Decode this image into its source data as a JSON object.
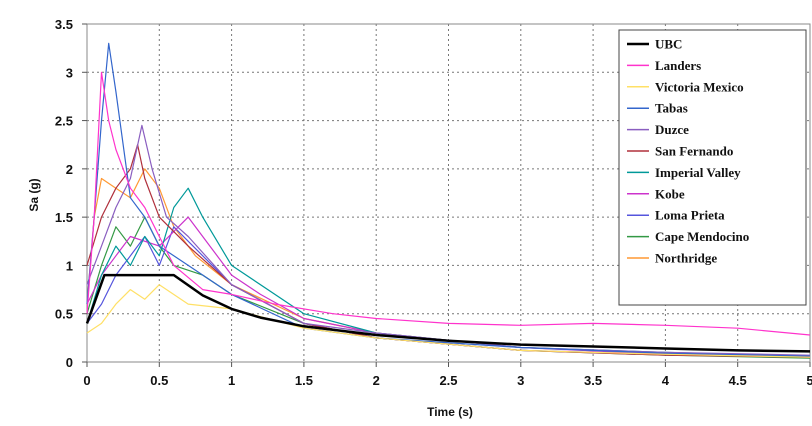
{
  "chart_data": {
    "type": "line",
    "title": "",
    "xlabel": "Time (s)",
    "ylabel": "Sa (g)",
    "xlim": [
      0,
      5
    ],
    "ylim": [
      0,
      3.5
    ],
    "xticks": [
      "0",
      "0.5",
      "1",
      "1.5",
      "2",
      "2.5",
      "3",
      "3.5",
      "4",
      "4.5",
      "5"
    ],
    "yticks": [
      "0",
      "0.5",
      "1",
      "1.5",
      "2",
      "2.5",
      "3",
      "3.5"
    ],
    "grid": "dotted",
    "legend_position": "top-right",
    "series": [
      {
        "name": "UBC",
        "color": "#000000",
        "x": [
          0,
          0.12,
          0.6,
          0.8,
          1,
          1.2,
          1.5,
          2,
          2.5,
          3,
          3.5,
          4,
          4.5,
          5
        ],
        "y": [
          0.4,
          0.9,
          0.9,
          0.69,
          0.55,
          0.46,
          0.37,
          0.28,
          0.22,
          0.18,
          0.16,
          0.14,
          0.12,
          0.11
        ]
      },
      {
        "name": "Landers",
        "color": "#ff33cc",
        "x": [
          0,
          0.05,
          0.1,
          0.15,
          0.2,
          0.3,
          0.4,
          0.5,
          0.6,
          0.8,
          1,
          1.3,
          1.7,
          2,
          2.5,
          3,
          3.5,
          4,
          4.5,
          5
        ],
        "y": [
          0.5,
          1.5,
          3.0,
          2.5,
          2.2,
          1.8,
          1.6,
          1.3,
          1.0,
          0.75,
          0.7,
          0.6,
          0.5,
          0.45,
          0.4,
          0.38,
          0.4,
          0.38,
          0.35,
          0.28
        ]
      },
      {
        "name": "Victoria Mexico",
        "color": "#ffe066",
        "x": [
          0,
          0.1,
          0.2,
          0.3,
          0.4,
          0.5,
          0.7,
          1,
          1.5,
          2,
          3,
          4,
          5
        ],
        "y": [
          0.3,
          0.4,
          0.6,
          0.75,
          0.65,
          0.8,
          0.6,
          0.55,
          0.35,
          0.25,
          0.12,
          0.08,
          0.05
        ]
      },
      {
        "name": "Tabas",
        "color": "#3366cc",
        "x": [
          0,
          0.05,
          0.1,
          0.15,
          0.2,
          0.3,
          0.4,
          0.5,
          0.7,
          1,
          1.5,
          2,
          3,
          4,
          5
        ],
        "y": [
          0.6,
          1.5,
          2.5,
          3.3,
          2.8,
          1.7,
          1.5,
          1.2,
          1.0,
          0.7,
          0.35,
          0.25,
          0.15,
          0.09,
          0.06
        ]
      },
      {
        "name": "Duzce",
        "color": "#8a5ec0",
        "x": [
          0,
          0.1,
          0.2,
          0.3,
          0.38,
          0.45,
          0.55,
          0.7,
          1,
          1.5,
          2,
          3,
          4,
          5
        ],
        "y": [
          0.8,
          1.2,
          1.6,
          1.9,
          2.45,
          2.0,
          1.5,
          1.3,
          0.8,
          0.4,
          0.3,
          0.15,
          0.1,
          0.07
        ]
      },
      {
        "name": "San Fernando",
        "color": "#b0303c",
        "x": [
          0,
          0.1,
          0.2,
          0.3,
          0.35,
          0.4,
          0.5,
          0.7,
          1,
          1.5,
          2,
          3,
          4,
          5
        ],
        "y": [
          1.0,
          1.5,
          1.8,
          2.0,
          2.25,
          1.9,
          1.5,
          1.2,
          0.8,
          0.4,
          0.25,
          0.12,
          0.07,
          0.05
        ]
      },
      {
        "name": "Imperial Valley",
        "color": "#009999",
        "x": [
          0,
          0.1,
          0.2,
          0.3,
          0.4,
          0.5,
          0.6,
          0.7,
          0.8,
          1,
          1.5,
          2,
          3,
          4,
          5
        ],
        "y": [
          0.4,
          0.9,
          1.2,
          1.0,
          1.3,
          1.1,
          1.6,
          1.8,
          1.5,
          1.0,
          0.5,
          0.3,
          0.15,
          0.1,
          0.06
        ]
      },
      {
        "name": "Kobe",
        "color": "#cc33cc",
        "x": [
          0,
          0.1,
          0.2,
          0.3,
          0.5,
          0.7,
          0.8,
          1,
          1.2,
          1.5,
          2,
          3,
          4,
          5
        ],
        "y": [
          0.6,
          0.9,
          1.1,
          1.3,
          1.2,
          1.5,
          1.3,
          0.9,
          0.7,
          0.45,
          0.3,
          0.15,
          0.08,
          0.05
        ]
      },
      {
        "name": "Loma Prieta",
        "color": "#5555dd",
        "x": [
          0,
          0.1,
          0.2,
          0.3,
          0.4,
          0.5,
          0.6,
          0.8,
          1,
          1.5,
          2,
          3,
          4,
          5
        ],
        "y": [
          0.4,
          0.6,
          0.9,
          1.1,
          1.3,
          1.0,
          1.4,
          1.1,
          0.8,
          0.4,
          0.25,
          0.12,
          0.08,
          0.05
        ]
      },
      {
        "name": "Cape Mendocino",
        "color": "#339944",
        "x": [
          0,
          0.1,
          0.2,
          0.3,
          0.4,
          0.5,
          0.6,
          0.8,
          1,
          1.5,
          2,
          3,
          4,
          5
        ],
        "y": [
          0.5,
          1.0,
          1.4,
          1.2,
          1.5,
          1.2,
          1.0,
          0.9,
          0.7,
          0.4,
          0.25,
          0.12,
          0.07,
          0.04
        ]
      },
      {
        "name": "Northridge",
        "color": "#ff9933",
        "x": [
          0,
          0.05,
          0.1,
          0.2,
          0.3,
          0.4,
          0.5,
          0.6,
          0.75,
          1,
          1.5,
          2,
          3,
          4,
          5
        ],
        "y": [
          0.6,
          1.5,
          1.9,
          1.8,
          1.7,
          2.0,
          1.8,
          1.4,
          1.1,
          0.8,
          0.45,
          0.3,
          0.15,
          0.09,
          0.06
        ]
      }
    ]
  }
}
